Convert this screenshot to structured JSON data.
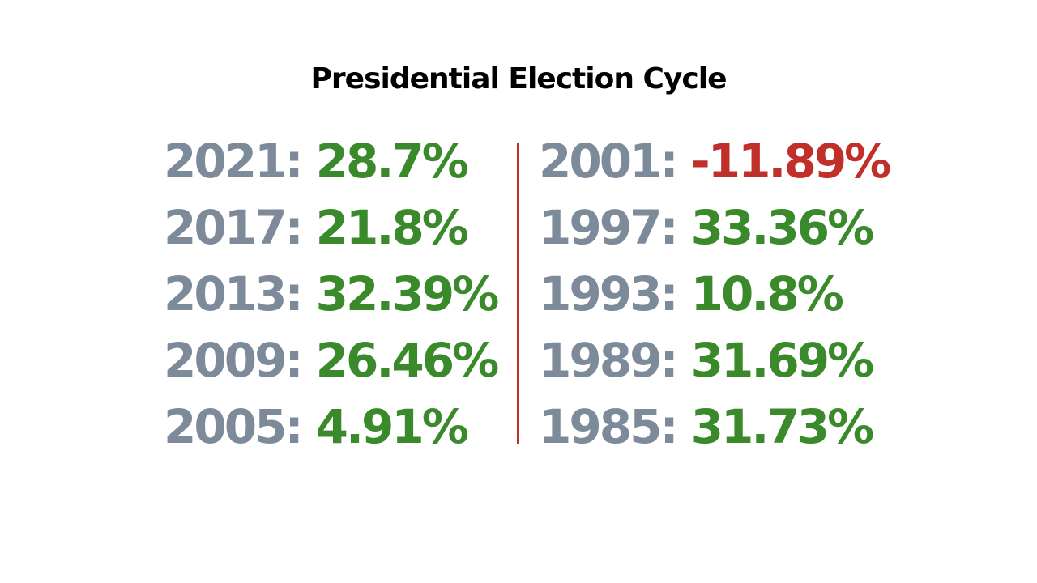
{
  "title": "Presidential Election Cycle",
  "colors": {
    "year": "#7d8a99",
    "positive": "#3a8a2c",
    "negative": "#c12f2b",
    "divider": "#c12f2b"
  },
  "left": [
    {
      "year": "2021",
      "sep": ":",
      "value": "28.7%"
    },
    {
      "year": "2017",
      "sep": ":",
      "value": "21.8%"
    },
    {
      "year": "2013",
      "sep": ":",
      "value": "32.39%"
    },
    {
      "year": "2009",
      "sep": ":",
      "value": "26.46%"
    },
    {
      "year": "2005",
      "sep": ":",
      "value": "4.91%"
    }
  ],
  "right": [
    {
      "year": "2001",
      "sep": ":",
      "value": "-11.89%"
    },
    {
      "year": "1997",
      "sep": ":",
      "value": "33.36%"
    },
    {
      "year": "1993",
      "sep": ":",
      "value": "10.8%"
    },
    {
      "year": "1989",
      "sep": ":",
      "value": "31.69%"
    },
    {
      "year": "1985",
      "sep": ":",
      "value": "31.73%"
    }
  ]
}
